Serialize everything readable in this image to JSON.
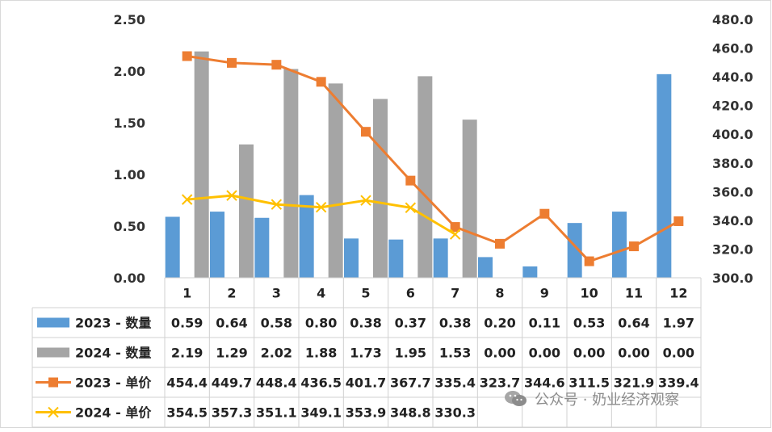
{
  "chart_data": {
    "type": "bar",
    "categories": [
      "1",
      "2",
      "3",
      "4",
      "5",
      "6",
      "7",
      "8",
      "9",
      "10",
      "11",
      "12"
    ],
    "left_axis": {
      "ylim": [
        0,
        2.5
      ],
      "ticks": [
        "0.00",
        "0.50",
        "1.00",
        "1.50",
        "2.00",
        "2.50"
      ]
    },
    "right_axis": {
      "ylim": [
        300,
        480
      ],
      "ticks": [
        "300.0",
        "320.0",
        "340.0",
        "360.0",
        "380.0",
        "400.0",
        "420.0",
        "440.0",
        "460.0",
        "480.0"
      ]
    },
    "series": [
      {
        "name": "2023 - 数量",
        "kind": "bar",
        "axis": "left",
        "color": "#5b9bd5",
        "values": [
          0.59,
          0.64,
          0.58,
          0.8,
          0.38,
          0.37,
          0.38,
          0.2,
          0.11,
          0.53,
          0.64,
          1.97
        ],
        "labels": [
          "0.59",
          "0.64",
          "0.58",
          "0.80",
          "0.38",
          "0.37",
          "0.38",
          "0.20",
          "0.11",
          "0.53",
          "0.64",
          "1.97"
        ]
      },
      {
        "name": "2024 - 数量",
        "kind": "bar",
        "axis": "left",
        "color": "#a5a5a5",
        "values": [
          2.19,
          1.29,
          2.02,
          1.88,
          1.73,
          1.95,
          1.53,
          0.0,
          0.0,
          0.0,
          0.0,
          0.0
        ],
        "labels": [
          "2.19",
          "1.29",
          "2.02",
          "1.88",
          "1.73",
          "1.95",
          "1.53",
          "0.00",
          "0.00",
          "0.00",
          "0.00",
          "0.00"
        ]
      },
      {
        "name": "2023 - 单价",
        "kind": "line",
        "marker": "square",
        "axis": "right",
        "color": "#ed7d31",
        "values": [
          454.4,
          449.7,
          448.4,
          436.5,
          401.7,
          367.7,
          335.4,
          323.7,
          344.6,
          311.5,
          321.9,
          339.4
        ],
        "labels": [
          "454.4",
          "449.7",
          "448.4",
          "436.5",
          "401.7",
          "367.7",
          "335.4",
          "323.7",
          "344.6",
          "311.5",
          "321.9",
          "339.4"
        ]
      },
      {
        "name": "2024 - 单价",
        "kind": "line",
        "marker": "x",
        "axis": "right",
        "color": "#ffc000",
        "values": [
          354.5,
          357.3,
          351.1,
          349.1,
          353.9,
          348.8,
          330.3,
          null,
          null,
          null,
          null,
          null
        ],
        "labels": [
          "354.5",
          "357.3",
          "351.1",
          "349.1",
          "353.9",
          "348.8",
          "330.3",
          "",
          "",
          "",
          "",
          ""
        ]
      }
    ],
    "grid": false,
    "legend": "data-table"
  },
  "watermark": {
    "text": "公众号 · 奶业经济观察",
    "icon": "wechat-icon"
  }
}
